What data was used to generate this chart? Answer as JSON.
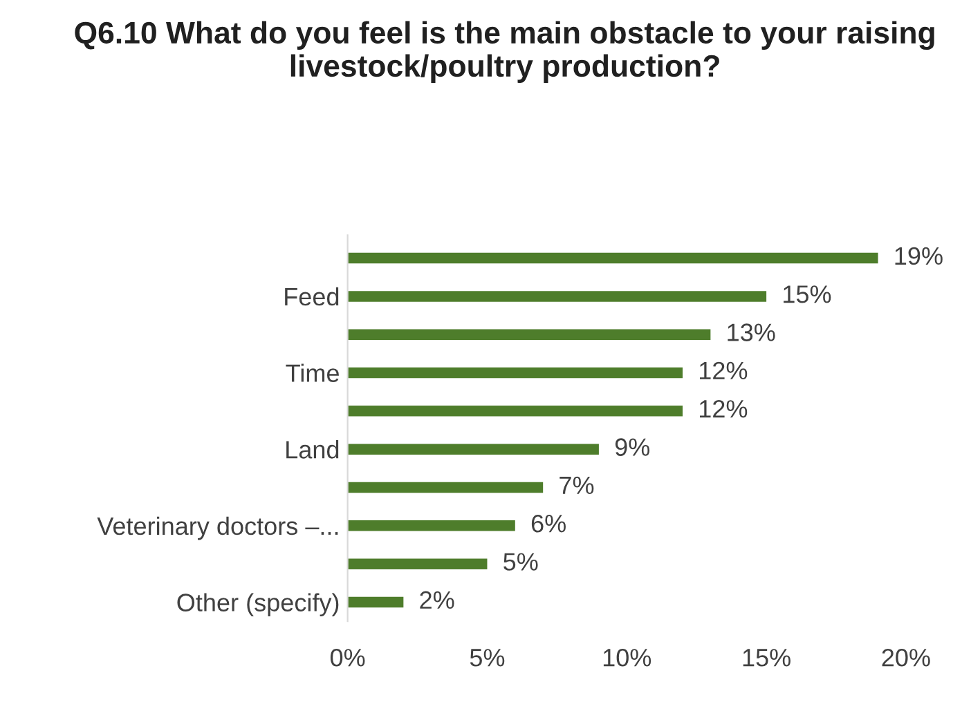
{
  "chart_data": {
    "type": "bar",
    "orientation": "horizontal",
    "title": "Q6.10 What do you feel is the main obstacle to your raising livestock/poultry production?",
    "categories": [
      null,
      "Feed",
      null,
      "Time",
      null,
      "Land",
      null,
      "Veterinary doctors –...",
      null,
      "Other (specify)"
    ],
    "values": [
      19,
      15,
      13,
      12,
      12,
      9,
      7,
      6,
      5,
      2
    ],
    "value_labels": [
      "19%",
      "15%",
      "13%",
      "12%",
      "12%",
      "9%",
      "7%",
      "6%",
      "5%",
      "2%"
    ],
    "color": "#4e7d2b",
    "xlim": [
      0,
      20
    ],
    "xticks": [
      {
        "value": 0,
        "label": "0%"
      },
      {
        "value": 5,
        "label": "5%"
      },
      {
        "value": 10,
        "label": "10%"
      },
      {
        "value": 15,
        "label": "15%"
      },
      {
        "value": 20,
        "label": "20%"
      }
    ],
    "grid": false,
    "legend": false
  }
}
